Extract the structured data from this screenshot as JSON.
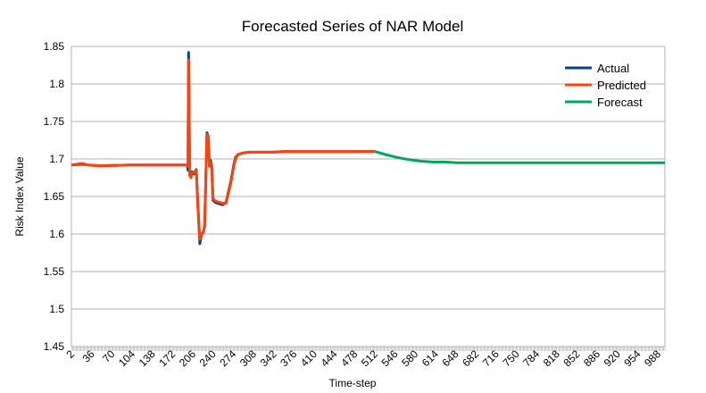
{
  "chart_data": {
    "type": "line",
    "title": "Forecasted Series of NAR Model",
    "xlabel": "Time-step",
    "ylabel": "Risk Index Value",
    "ylim": [
      1.45,
      1.85
    ],
    "xlim": [
      2,
      1000
    ],
    "y_ticks": [
      "1.45",
      "1.5",
      "1.55",
      "1.6",
      "1.65",
      "1.7",
      "1.75",
      "1.8",
      "1.85"
    ],
    "x_ticks": [
      "2",
      "36",
      "70",
      "104",
      "138",
      "172",
      "206",
      "240",
      "274",
      "308",
      "342",
      "376",
      "410",
      "444",
      "478",
      "512",
      "546",
      "580",
      "614",
      "648",
      "682",
      "716",
      "750",
      "784",
      "818",
      "852",
      "886",
      "920",
      "954",
      "988"
    ],
    "grid": "horizontal",
    "legend_position": "top-right",
    "series": [
      {
        "name": "Actual",
        "color": "#004586",
        "x": [
          2,
          20,
          30,
          50,
          100,
          150,
          197,
          198,
          199,
          201,
          203,
          205,
          208,
          212,
          215,
          218,
          221,
          224,
          226,
          230,
          232,
          234,
          236,
          238,
          240,
          244,
          248,
          252,
          256,
          262,
          270,
          275,
          278,
          282,
          290,
          300,
          320,
          340,
          360,
          400,
          450,
          500,
          512
        ],
        "y": [
          1.692,
          1.693,
          1.692,
          1.691,
          1.692,
          1.692,
          1.692,
          1.685,
          1.842,
          1.678,
          1.676,
          1.683,
          1.68,
          1.686,
          1.635,
          1.587,
          1.6,
          1.603,
          1.61,
          1.735,
          1.73,
          1.695,
          1.698,
          1.69,
          1.645,
          1.642,
          1.641,
          1.64,
          1.639,
          1.642,
          1.67,
          1.692,
          1.702,
          1.706,
          1.708,
          1.709,
          1.709,
          1.709,
          1.71,
          1.71,
          1.71,
          1.71,
          1.71
        ]
      },
      {
        "name": "Predicted",
        "color": "#ff420e",
        "x": [
          2,
          20,
          30,
          50,
          100,
          150,
          197,
          198,
          199,
          201,
          203,
          205,
          208,
          212,
          215,
          218,
          221,
          224,
          226,
          230,
          232,
          234,
          236,
          238,
          240,
          244,
          248,
          252,
          256,
          262,
          270,
          275,
          278,
          282,
          290,
          300,
          320,
          340,
          360,
          400,
          450,
          500,
          512
        ],
        "y": [
          1.692,
          1.694,
          1.692,
          1.691,
          1.692,
          1.692,
          1.692,
          1.69,
          1.832,
          1.68,
          1.675,
          1.681,
          1.682,
          1.685,
          1.632,
          1.593,
          1.6,
          1.602,
          1.613,
          1.733,
          1.728,
          1.69,
          1.695,
          1.688,
          1.647,
          1.644,
          1.643,
          1.642,
          1.641,
          1.641,
          1.668,
          1.69,
          1.7,
          1.706,
          1.708,
          1.709,
          1.709,
          1.709,
          1.71,
          1.71,
          1.71,
          1.71,
          1.71
        ]
      },
      {
        "name": "Forecast",
        "color": "#00a65d",
        "x": [
          512,
          530,
          550,
          570,
          590,
          610,
          630,
          650,
          680,
          720,
          800,
          900,
          1000
        ],
        "y": [
          1.71,
          1.706,
          1.702,
          1.699,
          1.697,
          1.696,
          1.696,
          1.695,
          1.695,
          1.695,
          1.695,
          1.695,
          1.695
        ]
      }
    ]
  }
}
